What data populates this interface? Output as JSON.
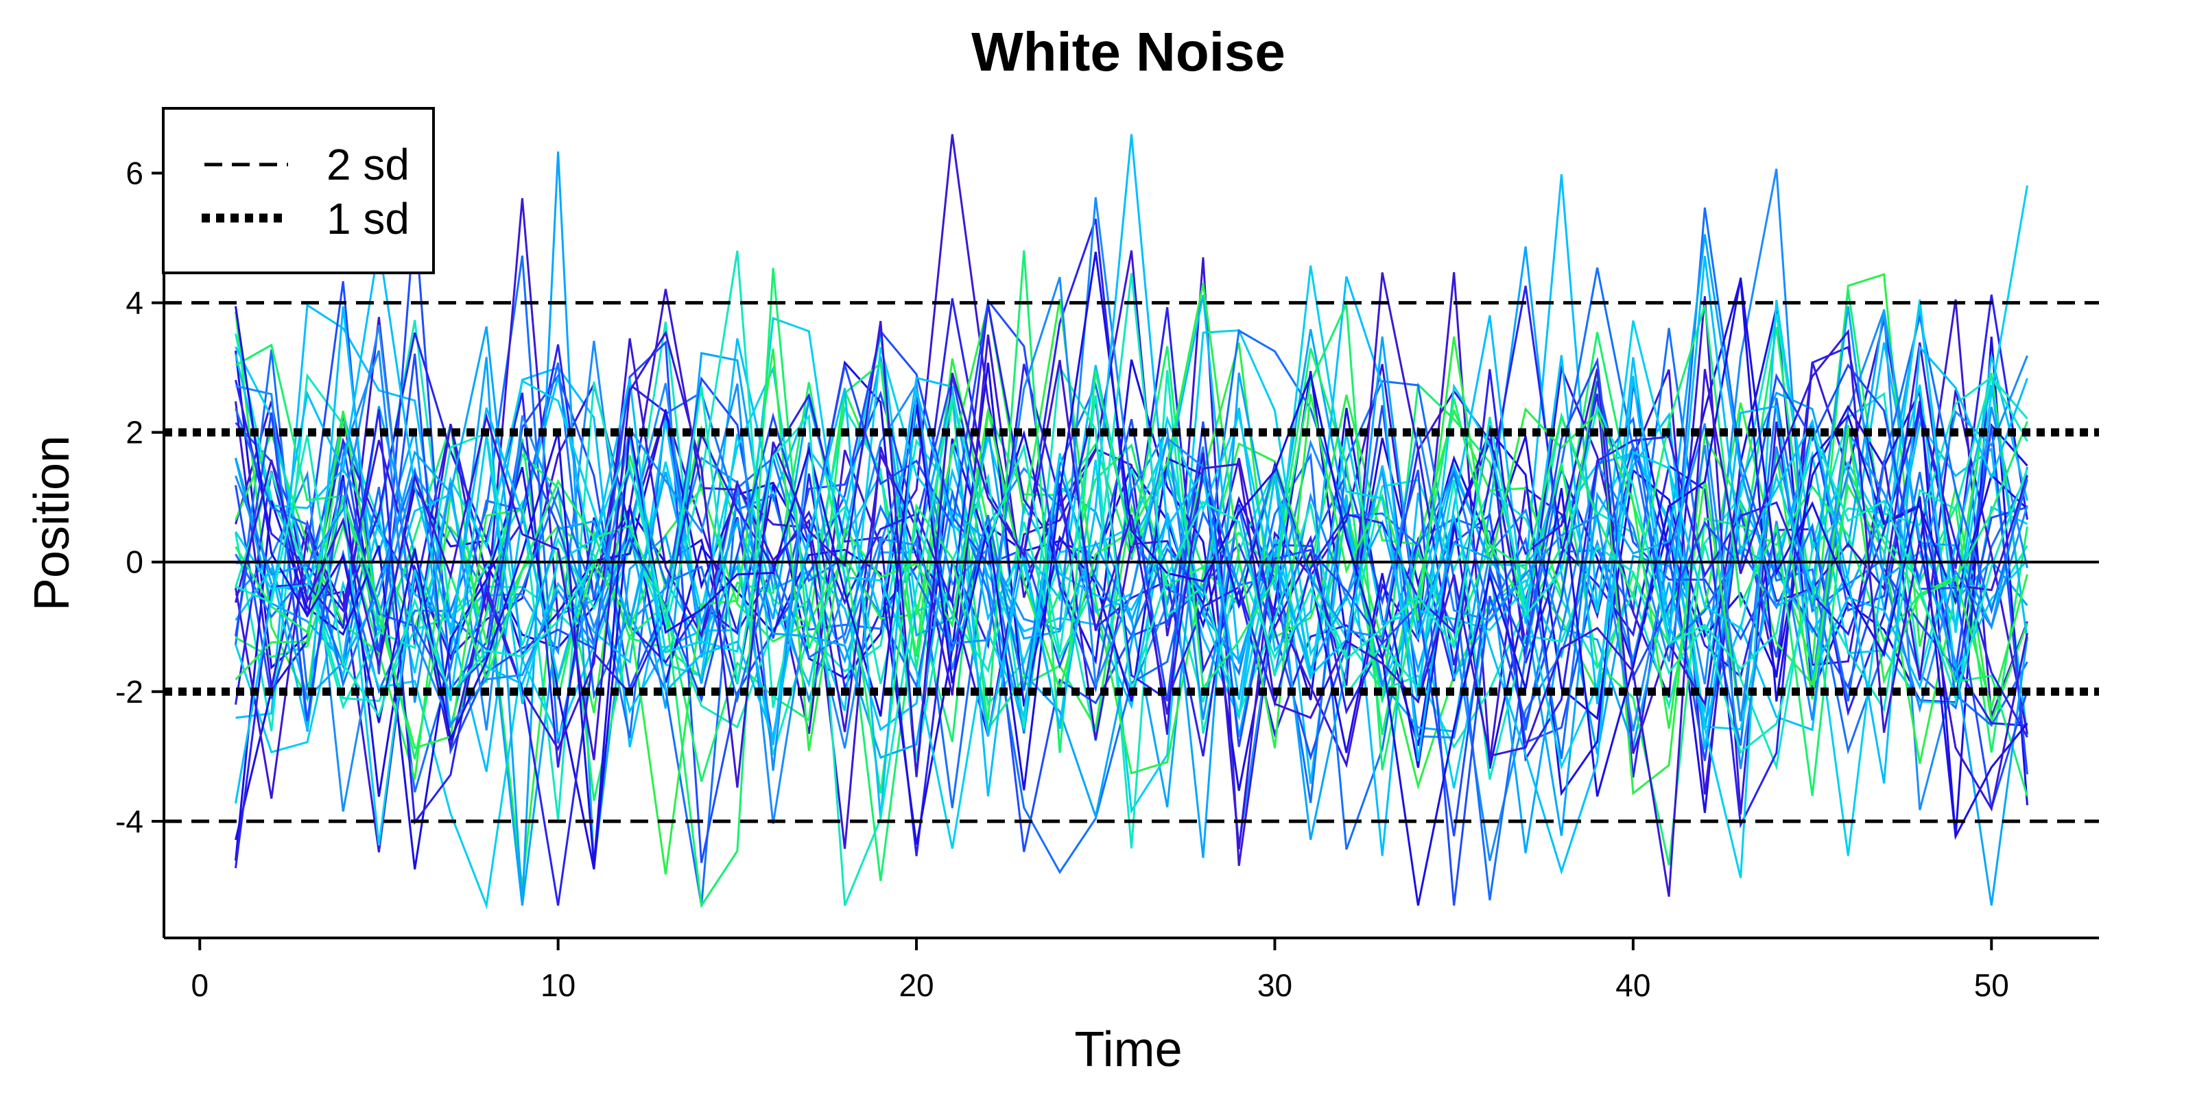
{
  "chart_data": {
    "type": "line",
    "title": "White Noise",
    "xlabel": "Time",
    "ylabel": "Position",
    "xlim": [
      -1,
      53
    ],
    "ylim": [
      -5.8,
      7.0
    ],
    "xticks": [
      0,
      10,
      20,
      30,
      40,
      50
    ],
    "yticks": [
      -4,
      -2,
      0,
      2,
      4,
      6
    ],
    "x_start": 1,
    "x_end": 51,
    "n_series": 40,
    "series_color_range": [
      "#0000dd",
      "#00ff44"
    ],
    "series_colors_sample": [
      "#1010e0",
      "#2040ff",
      "#3010d8",
      "#1a8cff",
      "#00aaff",
      "#00c8ff",
      "#00e0c0",
      "#10f060"
    ],
    "reference_lines": [
      {
        "name": "2 sd",
        "style": "dashed",
        "values": [
          4,
          -4
        ]
      },
      {
        "name": "1 sd",
        "style": "dotted",
        "values": [
          2,
          -2
        ]
      },
      {
        "name": "zero",
        "style": "solid",
        "values": [
          0
        ]
      }
    ],
    "legend": {
      "position": "top-left",
      "entries": [
        {
          "label": "2 sd",
          "style": "dashed"
        },
        {
          "label": "1 sd",
          "style": "dotted"
        }
      ]
    },
    "notable_values": {
      "max": 6.6,
      "min": -5.3
    }
  }
}
